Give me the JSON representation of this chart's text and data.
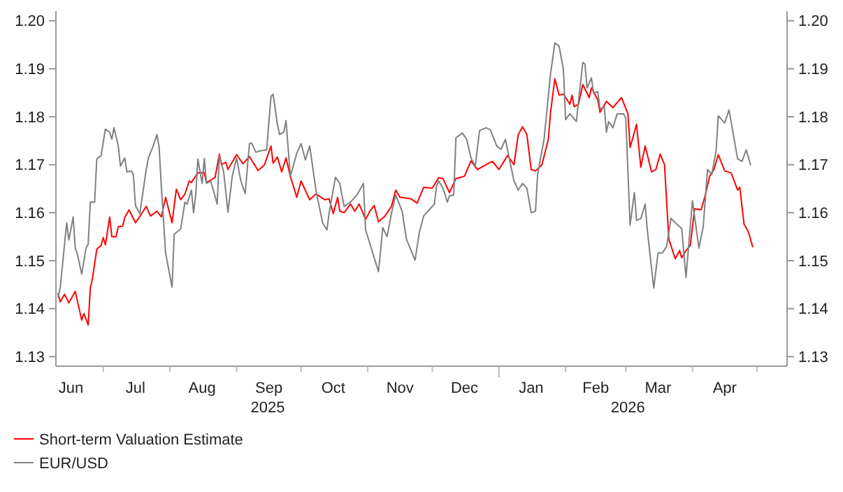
{
  "chart_data": {
    "type": "line",
    "xlim": [
      "2025-06-09",
      "2026-05-15"
    ],
    "xticks": [
      {
        "value": "2025-07-01",
        "label": null
      },
      {
        "value": "2025-08-01",
        "label": null
      },
      {
        "value": "2025-09-01",
        "label": null
      },
      {
        "value": "2025-10-01",
        "label": null
      },
      {
        "value": "2025-11-01",
        "label": null
      },
      {
        "value": "2025-12-01",
        "label": null
      },
      {
        "value": "2026-01-01",
        "label": null
      },
      {
        "value": "2026-02-01",
        "label": null
      },
      {
        "value": "2026-03-01",
        "label": null
      },
      {
        "value": "2026-04-01",
        "label": null
      },
      {
        "value": "2026-05-01",
        "label": null
      },
      {
        "value": "2025-06-16",
        "label": "Jun"
      },
      {
        "value": "2025-07-16",
        "label": "Jul"
      },
      {
        "value": "2025-08-16",
        "label": "Aug"
      },
      {
        "value": "2025-09-16",
        "label": "Sep"
      },
      {
        "value": "2025-10-16",
        "label": "Oct"
      },
      {
        "value": "2025-11-16",
        "label": "Nov"
      },
      {
        "value": "2025-12-16",
        "label": "Dec"
      },
      {
        "value": "2026-01-16",
        "label": "Jan"
      },
      {
        "value": "2026-02-15",
        "label": "Feb"
      },
      {
        "value": "2026-03-16",
        "label": "Mar"
      },
      {
        "value": "2026-04-16",
        "label": "Apr"
      }
    ],
    "ylim": [
      1.128,
      1.202
    ],
    "yticks": [
      1.13,
      1.14,
      1.15,
      1.16,
      1.17,
      1.18,
      1.19,
      {
        "value": 1.2,
        "label": "1.20"
      }
    ],
    "y2lim": [
      1.128,
      1.202
    ],
    "y2ticks": [
      1.13,
      1.14,
      1.15,
      1.16,
      1.17,
      1.18,
      1.19,
      {
        "value": 1.2,
        "label": "1.20"
      }
    ],
    "annotations": [
      "2025",
      "2026"
    ],
    "legend": "bottom",
    "series": [
      {
        "name": "Short-term Valuation Estimate",
        "color": "#ff0000",
        "x": [
          "2025-06-10",
          "2025-06-11",
          "2025-06-13",
          "2025-06-15",
          "2025-06-18",
          "2025-06-21",
          "2025-06-22",
          "2025-06-24",
          "2025-06-25",
          "2025-06-26",
          "2025-06-28",
          "2025-06-30",
          "2025-07-01",
          "2025-07-02",
          "2025-07-04",
          "2025-07-05",
          "2025-07-07",
          "2025-07-08",
          "2025-07-10",
          "2025-07-11",
          "2025-07-13",
          "2025-07-15",
          "2025-07-16",
          "2025-07-18",
          "2025-07-21",
          "2025-07-23",
          "2025-07-26",
          "2025-07-28",
          "2025-07-30",
          "2025-08-02",
          "2025-08-04",
          "2025-08-06",
          "2025-08-08",
          "2025-08-10",
          "2025-08-11",
          "2025-08-14",
          "2025-08-17",
          "2025-08-18",
          "2025-08-22",
          "2025-08-24",
          "2025-08-25",
          "2025-08-27",
          "2025-08-28",
          "2025-09-01",
          "2025-09-04",
          "2025-09-07",
          "2025-09-11",
          "2025-09-14",
          "2025-09-17",
          "2025-09-18",
          "2025-09-20",
          "2025-09-22",
          "2025-09-24",
          "2025-09-26",
          "2025-09-29",
          "2025-10-01",
          "2025-10-05",
          "2025-10-08",
          "2025-10-12",
          "2025-10-14",
          "2025-10-16",
          "2025-10-18",
          "2025-10-19",
          "2025-10-21",
          "2025-10-24",
          "2025-10-26",
          "2025-10-28",
          "2025-10-31",
          "2025-11-02",
          "2025-11-04",
          "2025-11-06",
          "2025-11-09",
          "2025-11-12",
          "2025-11-14",
          "2025-11-16",
          "2025-11-21",
          "2025-11-24",
          "2025-11-27",
          "2025-12-01",
          "2025-12-04",
          "2025-12-06",
          "2025-12-09",
          "2025-12-12",
          "2025-12-16",
          "2025-12-19",
          "2025-12-22",
          "2025-12-26",
          "2025-12-29",
          "2026-01-01",
          "2026-01-05",
          "2026-01-08",
          "2026-01-10",
          "2026-01-12",
          "2026-01-14",
          "2026-01-16",
          "2026-01-18",
          "2026-01-21",
          "2026-01-24",
          "2026-01-25",
          "2026-01-27",
          "2026-01-29",
          "2026-01-31",
          "2026-02-03",
          "2026-02-04",
          "2026-02-05",
          "2026-02-07",
          "2026-02-09",
          "2026-02-12",
          "2026-02-13",
          "2026-02-16",
          "2026-02-17",
          "2026-02-20",
          "2026-02-23",
          "2026-02-27",
          "2026-03-02",
          "2026-03-03",
          "2026-03-06",
          "2026-03-08",
          "2026-03-10",
          "2026-03-13",
          "2026-03-15",
          "2026-03-17",
          "2026-03-19",
          "2026-03-21",
          "2026-03-24",
          "2026-03-26",
          "2026-03-27",
          "2026-03-29",
          "2026-03-31",
          "2026-04-02",
          "2026-04-05",
          "2026-04-07",
          "2026-04-09",
          "2026-04-11",
          "2026-04-13",
          "2026-04-16",
          "2026-04-19",
          "2026-04-22",
          "2026-04-23",
          "2026-04-25",
          "2026-04-27",
          "2026-04-29"
        ],
        "values": [
          1.1431,
          1.1414,
          1.143,
          1.1412,
          1.1436,
          1.1376,
          1.139,
          1.1366,
          1.1443,
          1.1463,
          1.1524,
          1.1532,
          1.1548,
          1.1533,
          1.1591,
          1.155,
          1.155,
          1.1571,
          1.1572,
          1.159,
          1.1606,
          1.1588,
          1.1579,
          1.1592,
          1.1613,
          1.1593,
          1.1603,
          1.1591,
          1.1632,
          1.1579,
          1.1649,
          1.1627,
          1.1639,
          1.1666,
          1.1663,
          1.1683,
          1.1683,
          1.1663,
          1.1673,
          1.1722,
          1.17,
          1.1705,
          1.169,
          1.1721,
          1.1702,
          1.1717,
          1.1688,
          1.17,
          1.1739,
          1.1703,
          1.1716,
          1.1685,
          1.1714,
          1.1676,
          1.1632,
          1.1666,
          1.1627,
          1.1639,
          1.1627,
          1.1629,
          1.1598,
          1.1632,
          1.1603,
          1.16,
          1.1618,
          1.1603,
          1.1618,
          1.1586,
          1.1603,
          1.1615,
          1.1581,
          1.1593,
          1.1613,
          1.1647,
          1.1632,
          1.1629,
          1.162,
          1.1653,
          1.1651,
          1.1673,
          1.1671,
          1.1642,
          1.1671,
          1.1676,
          1.1708,
          1.169,
          1.17,
          1.1707,
          1.169,
          1.1719,
          1.17,
          1.1763,
          1.1779,
          1.1763,
          1.169,
          1.1687,
          1.17,
          1.1753,
          1.1809,
          1.1879,
          1.1845,
          1.1847,
          1.1826,
          1.1845,
          1.1821,
          1.1826,
          1.1867,
          1.184,
          1.186,
          1.1835,
          1.1809,
          1.1832,
          1.1819,
          1.184,
          1.1806,
          1.1736,
          1.1784,
          1.1695,
          1.1739,
          1.1685,
          1.169,
          1.1722,
          1.17,
          1.1545,
          1.1504,
          1.1521,
          1.1506,
          1.1521,
          1.1532,
          1.1608,
          1.1606,
          1.1637,
          1.1676,
          1.169,
          1.1721,
          1.1687,
          1.1683,
          1.1647,
          1.1653,
          1.1576,
          1.156,
          1.1529
        ]
      },
      {
        "name": "EUR/USD",
        "color": "#808080",
        "x": [
          "2025-06-10",
          "2025-06-11",
          "2025-06-14",
          "2025-06-15",
          "2025-06-17",
          "2025-06-18",
          "2025-06-19",
          "2025-06-21",
          "2025-06-23",
          "2025-06-24",
          "2025-06-25",
          "2025-06-27",
          "2025-06-28",
          "2025-06-30",
          "2025-07-02",
          "2025-07-04",
          "2025-07-05",
          "2025-07-06",
          "2025-07-08",
          "2025-07-09",
          "2025-07-11",
          "2025-07-12",
          "2025-07-14",
          "2025-07-15",
          "2025-07-16",
          "2025-07-18",
          "2025-07-21",
          "2025-07-22",
          "2025-07-24",
          "2025-07-26",
          "2025-07-27",
          "2025-07-28",
          "2025-07-30",
          "2025-08-02",
          "2025-08-03",
          "2025-08-06",
          "2025-08-08",
          "2025-08-09",
          "2025-08-11",
          "2025-08-12",
          "2025-08-13",
          "2025-08-14",
          "2025-08-16",
          "2025-08-17",
          "2025-08-18",
          "2025-08-20",
          "2025-08-23",
          "2025-08-24",
          "2025-08-26",
          "2025-08-28",
          "2025-08-30",
          "2025-09-01",
          "2025-09-03",
          "2025-09-05",
          "2025-09-07",
          "2025-09-08",
          "2025-09-10",
          "2025-09-12",
          "2025-09-15",
          "2025-09-17",
          "2025-09-18",
          "2025-09-20",
          "2025-09-21",
          "2025-09-23",
          "2025-09-24",
          "2025-09-26",
          "2025-09-29",
          "2025-10-01",
          "2025-10-03",
          "2025-10-05",
          "2025-10-08",
          "2025-10-11",
          "2025-10-13",
          "2025-10-14",
          "2025-10-17",
          "2025-10-19",
          "2025-10-21",
          "2025-10-24",
          "2025-10-27",
          "2025-10-30",
          "2025-10-31",
          "2025-11-03",
          "2025-11-06",
          "2025-11-08",
          "2025-11-10",
          "2025-11-12",
          "2025-11-14",
          "2025-11-17",
          "2025-11-19",
          "2025-11-23",
          "2025-11-25",
          "2025-11-27",
          "2025-11-29",
          "2025-12-02",
          "2025-12-03",
          "2025-12-04",
          "2025-12-06",
          "2025-12-08",
          "2025-12-09",
          "2025-12-11",
          "2025-12-12",
          "2025-12-15",
          "2025-12-17",
          "2025-12-19",
          "2025-12-21",
          "2025-12-23",
          "2025-12-26",
          "2025-12-28",
          "2025-12-31",
          "2026-01-02",
          "2026-01-04",
          "2026-01-08",
          "2026-01-10",
          "2026-01-12",
          "2026-01-14",
          "2026-01-16",
          "2026-01-18",
          "2026-01-19",
          "2026-01-22",
          "2026-01-25",
          "2026-01-27",
          "2026-01-29",
          "2026-01-31",
          "2026-02-01",
          "2026-02-03",
          "2026-02-06",
          "2026-02-09",
          "2026-02-10",
          "2026-02-11",
          "2026-02-13",
          "2026-02-14",
          "2026-02-16",
          "2026-02-17",
          "2026-02-19",
          "2026-02-20",
          "2026-02-21",
          "2026-02-23",
          "2026-02-25",
          "2026-02-28",
          "2026-03-01",
          "2026-03-03",
          "2026-03-05",
          "2026-03-06",
          "2026-03-08",
          "2026-03-10",
          "2026-03-11",
          "2026-03-14",
          "2026-03-16",
          "2026-03-18",
          "2026-03-20",
          "2026-03-22",
          "2026-03-24",
          "2026-03-27",
          "2026-03-29",
          "2026-04-01",
          "2026-04-03",
          "2026-04-04",
          "2026-04-06",
          "2026-04-08",
          "2026-04-10",
          "2026-04-12",
          "2026-04-13",
          "2026-04-16",
          "2026-04-18",
          "2026-04-20",
          "2026-04-22",
          "2026-04-24",
          "2026-04-26",
          "2026-04-28"
        ],
        "values": [
          1.1424,
          1.1443,
          1.1579,
          1.1543,
          1.1591,
          1.1526,
          1.1513,
          1.1472,
          1.1526,
          1.1535,
          1.1622,
          1.1622,
          1.1712,
          1.1719,
          1.1774,
          1.1768,
          1.1753,
          1.1777,
          1.1739,
          1.1697,
          1.1714,
          1.1685,
          1.1687,
          1.168,
          1.1615,
          1.1598,
          1.169,
          1.1714,
          1.1736,
          1.1763,
          1.1736,
          1.1656,
          1.1516,
          1.1445,
          1.1555,
          1.1566,
          1.1622,
          1.1618,
          1.1647,
          1.16,
          1.1637,
          1.1712,
          1.1661,
          1.1713,
          1.1661,
          1.1666,
          1.1618,
          1.1719,
          1.1685,
          1.1601,
          1.1676,
          1.1714,
          1.1666,
          1.164,
          1.1744,
          1.1745,
          1.1726,
          1.1729,
          1.1731,
          1.1842,
          1.1847,
          1.1784,
          1.1763,
          1.1768,
          1.1792,
          1.1676,
          1.1724,
          1.1744,
          1.171,
          1.1739,
          1.1645,
          1.1579,
          1.1564,
          1.1598,
          1.1674,
          1.1661,
          1.1613,
          1.1622,
          1.1637,
          1.1661,
          1.1564,
          1.1521,
          1.1477,
          1.1569,
          1.155,
          1.1598,
          1.1637,
          1.1603,
          1.1545,
          1.1501,
          1.1559,
          1.1593,
          1.1603,
          1.1618,
          1.1656,
          1.1666,
          1.1651,
          1.1622,
          1.1635,
          1.1637,
          1.1756,
          1.1766,
          1.1753,
          1.1714,
          1.1697,
          1.1771,
          1.1777,
          1.1773,
          1.1739,
          1.1732,
          1.1753,
          1.1666,
          1.1647,
          1.1661,
          1.1651,
          1.16,
          1.1603,
          1.168,
          1.1753,
          1.1889,
          1.1954,
          1.1947,
          1.1898,
          1.1794,
          1.1806,
          1.179,
          1.1913,
          1.191,
          1.186,
          1.1881,
          1.185,
          1.1852,
          1.1816,
          1.1821,
          1.1768,
          1.179,
          1.1777,
          1.1806,
          1.1806,
          1.1797,
          1.1574,
          1.1642,
          1.1584,
          1.1588,
          1.1618,
          1.1564,
          1.1443,
          1.1516,
          1.1516,
          1.153,
          1.1588,
          1.1579,
          1.1567,
          1.1465,
          1.1625,
          1.1559,
          1.1526,
          1.1571,
          1.169,
          1.168,
          1.1729,
          1.1802,
          1.1787,
          1.1814,
          1.1763,
          1.1712,
          1.1707,
          1.1731,
          1.17
        ]
      }
    ]
  }
}
